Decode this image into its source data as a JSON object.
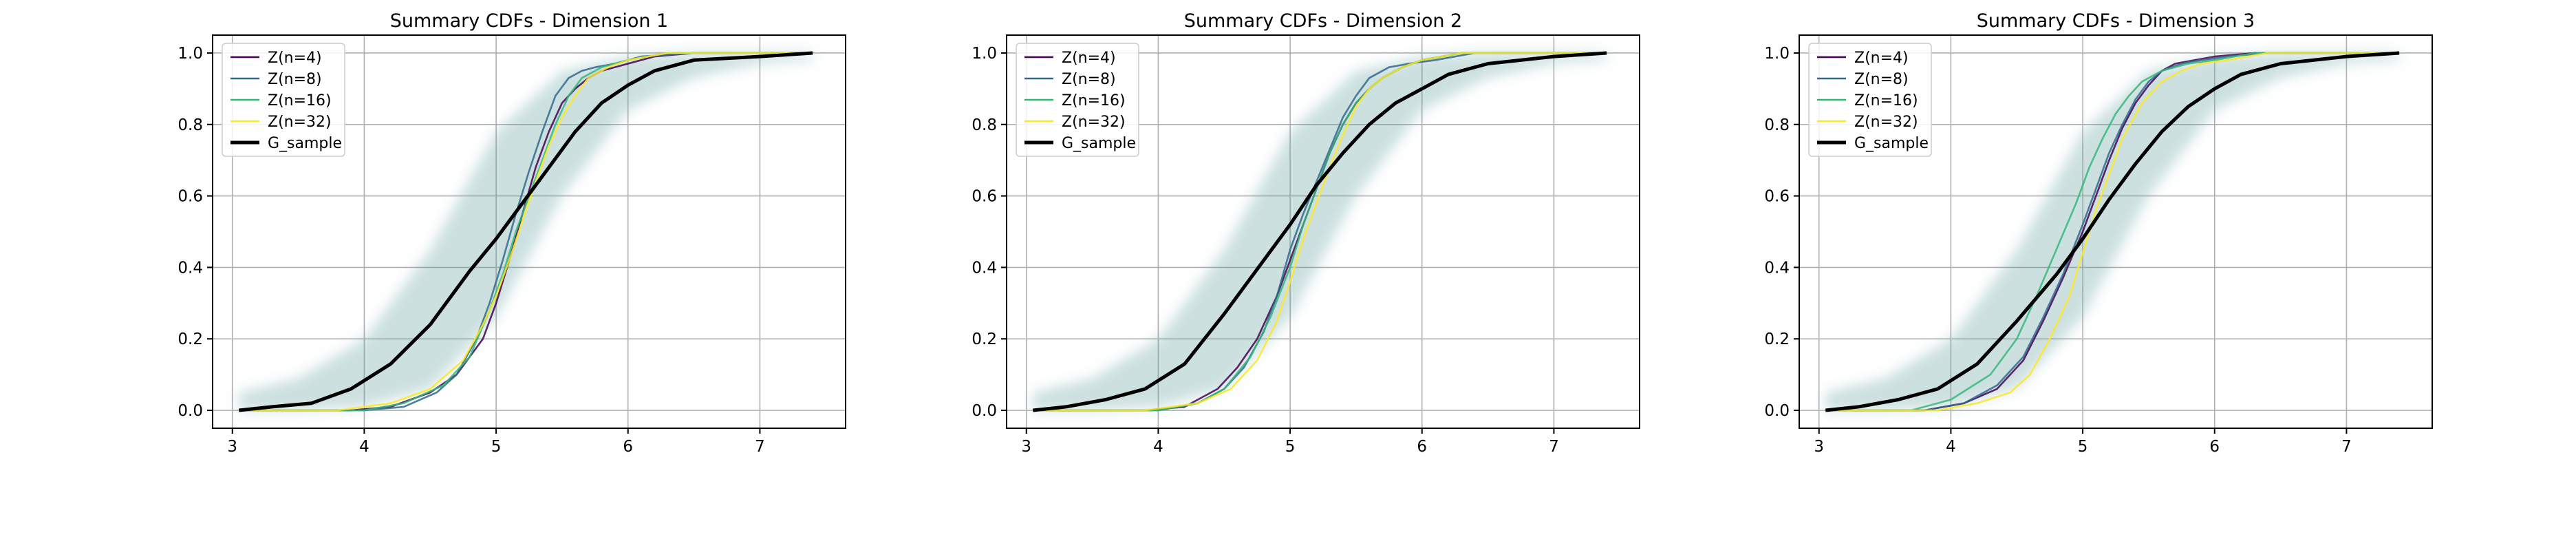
{
  "figure": {
    "colors": {
      "Z(n=4)": "#440154",
      "Z(n=8)": "#31688e",
      "Z(n=16)": "#35b779",
      "Z(n=32)": "#fde725",
      "G_sample": "#000000",
      "band": "#5f9ea0"
    }
  },
  "chart_data": [
    {
      "type": "line",
      "title": "Summary CDFs - Dimension 1",
      "xlabel": "",
      "ylabel": "",
      "xlim": [
        2.85,
        7.65
      ],
      "ylim": [
        -0.05,
        1.05
      ],
      "xticks": [
        "3",
        "4",
        "5",
        "6",
        "7"
      ],
      "yticks": [
        "0.0",
        "0.2",
        "0.4",
        "0.6",
        "0.8",
        "1.0"
      ],
      "grid": true,
      "legend": "top-left",
      "band": {
        "x": [
          3.05,
          3.5,
          4.0,
          4.5,
          5.0,
          5.5,
          6.0,
          6.5,
          7.0,
          7.4
        ],
        "lower": [
          0.0,
          0.0,
          0.01,
          0.06,
          0.26,
          0.6,
          0.84,
          0.93,
          0.97,
          0.98
        ],
        "upper": [
          0.05,
          0.09,
          0.2,
          0.45,
          0.78,
          0.95,
          0.99,
          1.0,
          1.0,
          1.0
        ]
      },
      "series": [
        {
          "name": "Z(n=4)",
          "x": [
            3.05,
            3.9,
            4.2,
            4.5,
            4.7,
            4.9,
            5.0,
            5.1,
            5.2,
            5.3,
            5.4,
            5.5,
            5.6,
            5.7,
            5.8,
            6.0,
            6.2,
            6.5,
            7.4
          ],
          "y": [
            0.0,
            0.0,
            0.01,
            0.05,
            0.1,
            0.2,
            0.3,
            0.42,
            0.55,
            0.68,
            0.78,
            0.86,
            0.9,
            0.93,
            0.95,
            0.97,
            0.99,
            1.0,
            1.0
          ]
        },
        {
          "name": "Z(n=8)",
          "x": [
            3.05,
            4.0,
            4.3,
            4.55,
            4.7,
            4.85,
            4.95,
            5.05,
            5.15,
            5.25,
            5.35,
            5.45,
            5.55,
            5.65,
            5.75,
            5.9,
            6.1,
            6.5,
            7.4
          ],
          "y": [
            0.0,
            0.0,
            0.01,
            0.05,
            0.1,
            0.2,
            0.3,
            0.42,
            0.55,
            0.67,
            0.78,
            0.88,
            0.93,
            0.95,
            0.96,
            0.97,
            0.99,
            1.0,
            1.0
          ]
        },
        {
          "name": "Z(n=16)",
          "x": [
            3.05,
            4.0,
            4.3,
            4.6,
            4.8,
            4.95,
            5.05,
            5.15,
            5.25,
            5.35,
            5.45,
            5.55,
            5.65,
            5.8,
            6.0,
            6.3,
            7.4
          ],
          "y": [
            0.0,
            0.0,
            0.02,
            0.07,
            0.15,
            0.28,
            0.38,
            0.5,
            0.6,
            0.7,
            0.8,
            0.88,
            0.93,
            0.96,
            0.98,
            1.0,
            1.0
          ]
        },
        {
          "name": "Z(n=32)",
          "x": [
            3.05,
            3.8,
            4.2,
            4.5,
            4.75,
            4.9,
            5.0,
            5.1,
            5.2,
            5.3,
            5.4,
            5.5,
            5.6,
            5.7,
            5.85,
            6.0,
            6.3,
            7.4
          ],
          "y": [
            0.0,
            0.0,
            0.02,
            0.06,
            0.14,
            0.24,
            0.32,
            0.42,
            0.53,
            0.64,
            0.74,
            0.82,
            0.88,
            0.93,
            0.96,
            0.98,
            1.0,
            1.0
          ]
        },
        {
          "name": "G_sample",
          "x": [
            3.05,
            3.3,
            3.6,
            3.9,
            4.2,
            4.5,
            4.8,
            5.0,
            5.2,
            5.4,
            5.6,
            5.8,
            6.0,
            6.2,
            6.5,
            7.0,
            7.4
          ],
          "y": [
            0.0,
            0.01,
            0.02,
            0.06,
            0.13,
            0.24,
            0.39,
            0.48,
            0.58,
            0.68,
            0.78,
            0.86,
            0.91,
            0.95,
            0.98,
            0.99,
            1.0
          ]
        }
      ]
    },
    {
      "type": "line",
      "title": "Summary CDFs - Dimension 2",
      "xlabel": "",
      "ylabel": "",
      "xlim": [
        2.85,
        7.65
      ],
      "ylim": [
        -0.05,
        1.05
      ],
      "xticks": [
        "3",
        "4",
        "5",
        "6",
        "7"
      ],
      "yticks": [
        "0.0",
        "0.2",
        "0.4",
        "0.6",
        "0.8",
        "1.0"
      ],
      "grid": true,
      "legend": "top-left",
      "band": {
        "x": [
          3.05,
          3.5,
          4.0,
          4.5,
          5.0,
          5.5,
          6.0,
          6.5,
          7.0,
          7.4
        ],
        "lower": [
          0.0,
          0.0,
          0.01,
          0.06,
          0.26,
          0.6,
          0.84,
          0.93,
          0.97,
          0.98
        ],
        "upper": [
          0.05,
          0.09,
          0.2,
          0.45,
          0.78,
          0.95,
          0.99,
          1.0,
          1.0,
          1.0
        ]
      },
      "series": [
        {
          "name": "Z(n=4)",
          "x": [
            3.05,
            3.9,
            4.2,
            4.45,
            4.6,
            4.75,
            4.9,
            5.0,
            5.1,
            5.2,
            5.3,
            5.4,
            5.5,
            5.6,
            5.7,
            5.85,
            6.0,
            6.3,
            7.4
          ],
          "y": [
            0.0,
            0.0,
            0.01,
            0.06,
            0.12,
            0.2,
            0.32,
            0.42,
            0.52,
            0.62,
            0.72,
            0.8,
            0.86,
            0.9,
            0.93,
            0.96,
            0.98,
            1.0,
            1.0
          ]
        },
        {
          "name": "Z(n=8)",
          "x": [
            3.05,
            4.0,
            4.3,
            4.5,
            4.65,
            4.8,
            4.9,
            5.0,
            5.1,
            5.2,
            5.3,
            5.4,
            5.5,
            5.6,
            5.75,
            5.9,
            6.1,
            6.4,
            7.4
          ],
          "y": [
            0.0,
            0.0,
            0.02,
            0.06,
            0.12,
            0.22,
            0.32,
            0.45,
            0.55,
            0.64,
            0.73,
            0.82,
            0.88,
            0.93,
            0.96,
            0.97,
            0.98,
            1.0,
            1.0
          ]
        },
        {
          "name": "Z(n=16)",
          "x": [
            3.05,
            4.0,
            4.3,
            4.5,
            4.7,
            4.85,
            5.0,
            5.1,
            5.2,
            5.3,
            5.4,
            5.5,
            5.6,
            5.7,
            5.85,
            6.0,
            6.3,
            7.4
          ],
          "y": [
            0.0,
            0.0,
            0.02,
            0.06,
            0.15,
            0.26,
            0.4,
            0.52,
            0.62,
            0.72,
            0.8,
            0.86,
            0.9,
            0.93,
            0.96,
            0.98,
            1.0,
            1.0
          ]
        },
        {
          "name": "Z(n=32)",
          "x": [
            3.05,
            3.9,
            4.3,
            4.55,
            4.75,
            4.9,
            5.0,
            5.1,
            5.2,
            5.3,
            5.4,
            5.5,
            5.6,
            5.7,
            5.85,
            6.0,
            6.3,
            7.4
          ],
          "y": [
            0.0,
            0.0,
            0.02,
            0.06,
            0.14,
            0.25,
            0.36,
            0.48,
            0.58,
            0.68,
            0.77,
            0.85,
            0.9,
            0.93,
            0.96,
            0.98,
            1.0,
            1.0
          ]
        },
        {
          "name": "G_sample",
          "x": [
            3.05,
            3.3,
            3.6,
            3.9,
            4.2,
            4.5,
            4.8,
            5.0,
            5.2,
            5.4,
            5.6,
            5.8,
            6.0,
            6.2,
            6.5,
            7.0,
            7.4
          ],
          "y": [
            0.0,
            0.01,
            0.03,
            0.06,
            0.13,
            0.27,
            0.42,
            0.52,
            0.63,
            0.72,
            0.8,
            0.86,
            0.9,
            0.94,
            0.97,
            0.99,
            1.0
          ]
        }
      ]
    },
    {
      "type": "line",
      "title": "Summary CDFs - Dimension 3",
      "xlabel": "",
      "ylabel": "",
      "xlim": [
        2.85,
        7.65
      ],
      "ylim": [
        -0.05,
        1.05
      ],
      "xticks": [
        "3",
        "4",
        "5",
        "6",
        "7"
      ],
      "yticks": [
        "0.0",
        "0.2",
        "0.4",
        "0.6",
        "0.8",
        "1.0"
      ],
      "grid": true,
      "legend": "top-left",
      "band": {
        "x": [
          3.05,
          3.5,
          4.0,
          4.5,
          5.0,
          5.5,
          6.0,
          6.5,
          7.0,
          7.4
        ],
        "lower": [
          0.0,
          0.0,
          0.01,
          0.06,
          0.26,
          0.6,
          0.84,
          0.93,
          0.97,
          0.98
        ],
        "upper": [
          0.05,
          0.09,
          0.2,
          0.45,
          0.78,
          0.95,
          0.99,
          1.0,
          1.0,
          1.0
        ]
      },
      "series": [
        {
          "name": "Z(n=4)",
          "x": [
            3.05,
            3.8,
            4.1,
            4.35,
            4.55,
            4.7,
            4.85,
            5.0,
            5.1,
            5.2,
            5.3,
            5.4,
            5.5,
            5.6,
            5.7,
            5.85,
            6.0,
            6.3,
            7.4
          ],
          "y": [
            0.0,
            0.0,
            0.02,
            0.06,
            0.14,
            0.25,
            0.37,
            0.5,
            0.6,
            0.7,
            0.79,
            0.86,
            0.91,
            0.95,
            0.97,
            0.98,
            0.99,
            1.0,
            1.0
          ]
        },
        {
          "name": "Z(n=8)",
          "x": [
            3.05,
            3.8,
            4.1,
            4.35,
            4.55,
            4.7,
            4.85,
            5.0,
            5.1,
            5.2,
            5.3,
            5.4,
            5.5,
            5.6,
            5.75,
            5.9,
            6.1,
            6.4,
            7.4
          ],
          "y": [
            0.0,
            0.0,
            0.02,
            0.07,
            0.15,
            0.26,
            0.38,
            0.52,
            0.62,
            0.72,
            0.8,
            0.87,
            0.92,
            0.95,
            0.97,
            0.98,
            0.99,
            1.0,
            1.0
          ]
        },
        {
          "name": "Z(n=16)",
          "x": [
            3.05,
            3.7,
            4.0,
            4.3,
            4.5,
            4.65,
            4.8,
            4.95,
            5.05,
            5.15,
            5.25,
            5.35,
            5.45,
            5.6,
            5.8,
            6.0,
            6.3,
            7.4
          ],
          "y": [
            0.0,
            0.0,
            0.03,
            0.1,
            0.2,
            0.32,
            0.45,
            0.58,
            0.68,
            0.76,
            0.83,
            0.88,
            0.92,
            0.95,
            0.97,
            0.98,
            1.0,
            1.0
          ]
        },
        {
          "name": "Z(n=32)",
          "x": [
            3.05,
            3.9,
            4.2,
            4.45,
            4.6,
            4.75,
            4.9,
            5.0,
            5.1,
            5.2,
            5.3,
            5.45,
            5.6,
            5.75,
            5.9,
            6.1,
            6.4,
            7.4
          ],
          "y": [
            0.0,
            0.0,
            0.02,
            0.05,
            0.1,
            0.2,
            0.32,
            0.44,
            0.56,
            0.66,
            0.76,
            0.86,
            0.92,
            0.95,
            0.97,
            0.98,
            1.0,
            1.0
          ]
        },
        {
          "name": "G_sample",
          "x": [
            3.05,
            3.3,
            3.6,
            3.9,
            4.2,
            4.5,
            4.8,
            5.0,
            5.2,
            5.4,
            5.6,
            5.8,
            6.0,
            6.2,
            6.5,
            7.0,
            7.4
          ],
          "y": [
            0.0,
            0.01,
            0.03,
            0.06,
            0.13,
            0.25,
            0.38,
            0.48,
            0.59,
            0.69,
            0.78,
            0.85,
            0.9,
            0.94,
            0.97,
            0.99,
            1.0
          ]
        }
      ]
    }
  ]
}
